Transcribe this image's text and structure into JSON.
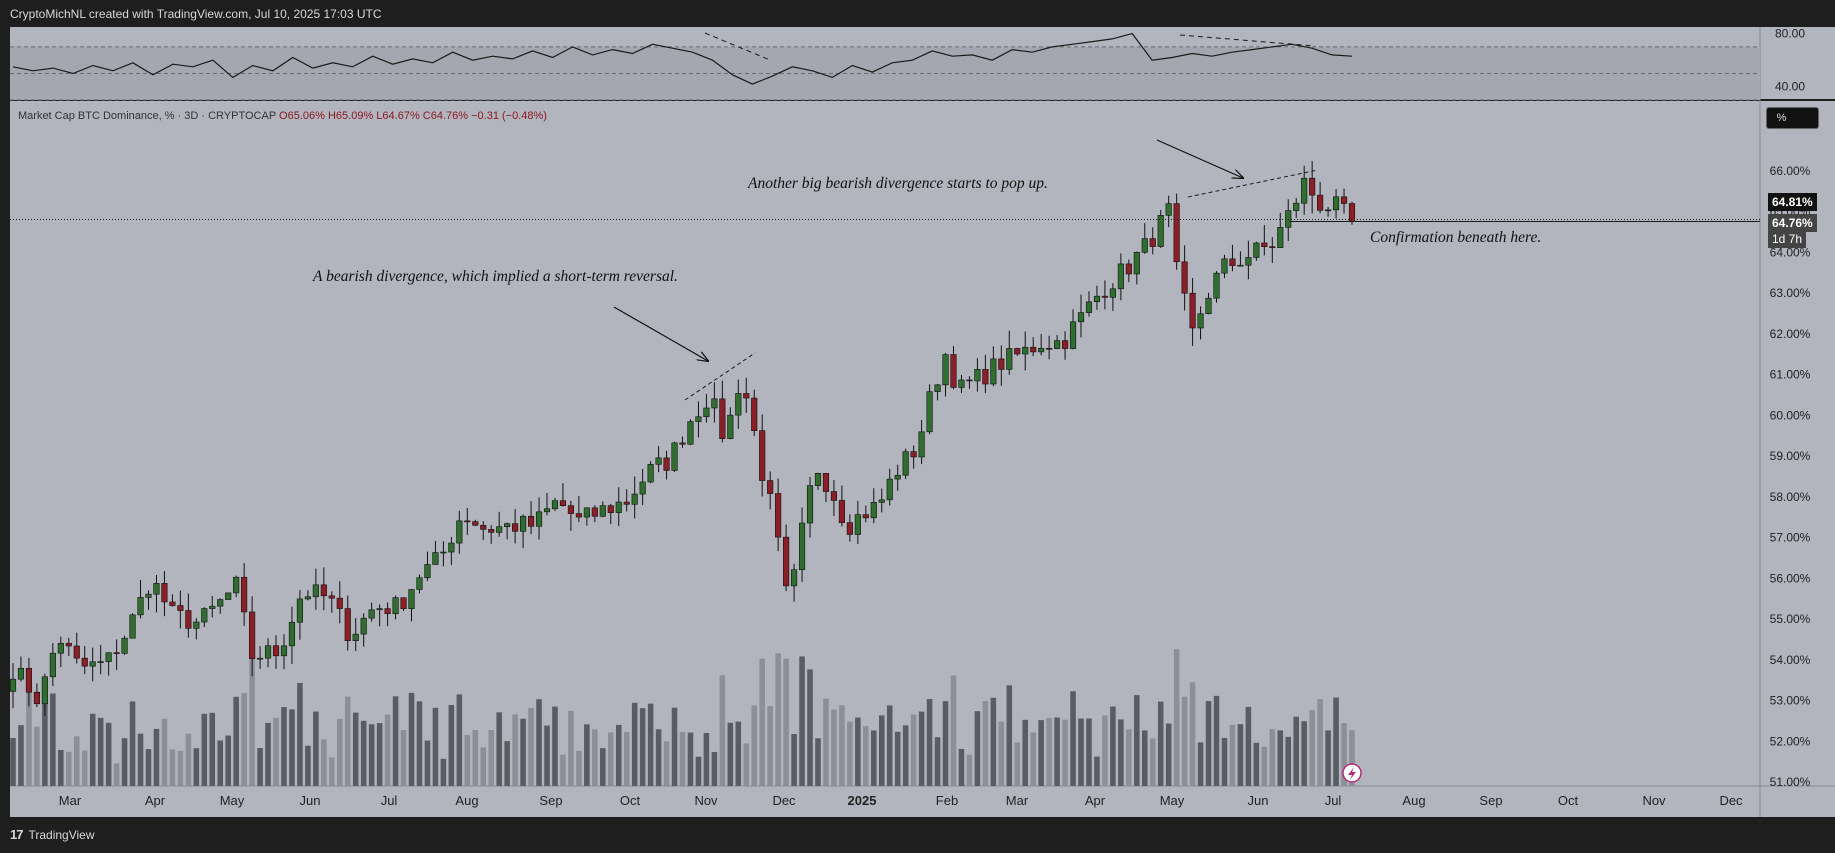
{
  "header": {
    "attribution": "CryptoMichNL created with TradingView.com, Jul 10, 2025 17:03 UTC"
  },
  "footer": {
    "brand": "TradingView",
    "logo": "17"
  },
  "legend": {
    "symbol": "Market Cap BTC Dominance, % · 3D · CRYPTOCAP",
    "open": "O65.06%",
    "high": "H65.09%",
    "low": "L64.67%",
    "close": "C64.76%",
    "change": "−0.31 (−0.48%)"
  },
  "annotations": {
    "first": "A bearish divergence, which implied a short-term reversal.",
    "second": "Another big bearish divergence starts to pop up.",
    "third": "Confirmation beneath here."
  },
  "price_tags": {
    "last": "64.81%",
    "close": "64.76%",
    "countdown": "1d 7h"
  },
  "scale_button": "%",
  "colors": {
    "bull": "#2f6e2f",
    "bear": "#8b1f28",
    "background": "#b2b5be",
    "volume_dark": "#5a5c63",
    "volume_light": "#8c8f98"
  },
  "chart_data": {
    "type": "candlestick",
    "title": "Market Cap BTC Dominance, %",
    "timeframe": "3D",
    "ylim": [
      51.0,
      66.5
    ],
    "y_ticks": [
      "51.00%",
      "52.00%",
      "53.00%",
      "54.00%",
      "55.00%",
      "56.00%",
      "57.00%",
      "58.00%",
      "59.00%",
      "60.00%",
      "61.00%",
      "62.00%",
      "63.00%",
      "64.00%",
      "65.00%",
      "66.00%"
    ],
    "x_ticks": [
      "Mar",
      "Apr",
      "May",
      "Jun",
      "Jul",
      "Aug",
      "Sep",
      "Oct",
      "Nov",
      "Dec",
      "2025",
      "Feb",
      "Mar",
      "Apr",
      "May",
      "Jun",
      "Jul",
      "Aug",
      "Sep",
      "Oct",
      "Nov",
      "Dec"
    ],
    "close_anchors": [
      {
        "date": "2024-02-20",
        "close": 53.8
      },
      {
        "date": "2024-03-01",
        "close": 53.0
      },
      {
        "date": "2024-03-08",
        "close": 54.6
      },
      {
        "date": "2024-03-16",
        "close": 53.8
      },
      {
        "date": "2024-03-26",
        "close": 53.9
      },
      {
        "date": "2024-04-03",
        "close": 54.7
      },
      {
        "date": "2024-04-12",
        "close": 56.0
      },
      {
        "date": "2024-04-20",
        "close": 55.1
      },
      {
        "date": "2024-04-30",
        "close": 54.9
      },
      {
        "date": "2024-05-08",
        "close": 55.4
      },
      {
        "date": "2024-05-14",
        "close": 55.8
      },
      {
        "date": "2024-05-20",
        "close": 54.1
      },
      {
        "date": "2024-05-30",
        "close": 54.2
      },
      {
        "date": "2024-06-08",
        "close": 55.7
      },
      {
        "date": "2024-06-18",
        "close": 55.5
      },
      {
        "date": "2024-06-26",
        "close": 54.6
      },
      {
        "date": "2024-07-05",
        "close": 55.3
      },
      {
        "date": "2024-07-14",
        "close": 55.3
      },
      {
        "date": "2024-07-22",
        "close": 56.1
      },
      {
        "date": "2024-07-30",
        "close": 56.5
      },
      {
        "date": "2024-08-07",
        "close": 57.6
      },
      {
        "date": "2024-08-16",
        "close": 57.2
      },
      {
        "date": "2024-08-26",
        "close": 57.3
      },
      {
        "date": "2024-09-03",
        "close": 57.3
      },
      {
        "date": "2024-09-12",
        "close": 57.9
      },
      {
        "date": "2024-09-20",
        "close": 57.4
      },
      {
        "date": "2024-09-30",
        "close": 57.7
      },
      {
        "date": "2024-10-08",
        "close": 57.9
      },
      {
        "date": "2024-10-16",
        "close": 58.6
      },
      {
        "date": "2024-10-24",
        "close": 58.9
      },
      {
        "date": "2024-11-01",
        "close": 59.9
      },
      {
        "date": "2024-11-08",
        "close": 60.5
      },
      {
        "date": "2024-11-14",
        "close": 59.4
      },
      {
        "date": "2024-11-20",
        "close": 61.0
      },
      {
        "date": "2024-11-24",
        "close": 59.9
      },
      {
        "date": "2024-11-28",
        "close": 58.6
      },
      {
        "date": "2024-12-02",
        "close": 57.6
      },
      {
        "date": "2024-12-08",
        "close": 55.2
      },
      {
        "date": "2024-12-12",
        "close": 56.8
      },
      {
        "date": "2024-12-18",
        "close": 58.8
      },
      {
        "date": "2024-12-24",
        "close": 58.2
      },
      {
        "date": "2024-12-30",
        "close": 57.3
      },
      {
        "date": "2025-01-05",
        "close": 57.6
      },
      {
        "date": "2025-01-11",
        "close": 57.8
      },
      {
        "date": "2025-01-17",
        "close": 58.6
      },
      {
        "date": "2025-01-25",
        "close": 59.2
      },
      {
        "date": "2025-01-31",
        "close": 60.6
      },
      {
        "date": "2025-02-05",
        "close": 61.5
      },
      {
        "date": "2025-02-10",
        "close": 60.6
      },
      {
        "date": "2025-02-17",
        "close": 60.9
      },
      {
        "date": "2025-02-26",
        "close": 61.3
      },
      {
        "date": "2025-03-05",
        "close": 61.5
      },
      {
        "date": "2025-03-13",
        "close": 61.8
      },
      {
        "date": "2025-03-21",
        "close": 61.8
      },
      {
        "date": "2025-03-29",
        "close": 62.5
      },
      {
        "date": "2025-04-05",
        "close": 63.1
      },
      {
        "date": "2025-04-14",
        "close": 63.6
      },
      {
        "date": "2025-04-22",
        "close": 64.2
      },
      {
        "date": "2025-04-30",
        "close": 65.0
      },
      {
        "date": "2025-05-03",
        "close": 63.5
      },
      {
        "date": "2025-05-09",
        "close": 62.0
      },
      {
        "date": "2025-05-14",
        "close": 62.9
      },
      {
        "date": "2025-05-20",
        "close": 63.6
      },
      {
        "date": "2025-05-29",
        "close": 63.9
      },
      {
        "date": "2025-06-08",
        "close": 64.2
      },
      {
        "date": "2025-06-14",
        "close": 64.9
      },
      {
        "date": "2025-06-20",
        "close": 65.7
      },
      {
        "date": "2025-06-26",
        "close": 65.2
      },
      {
        "date": "2025-07-02",
        "close": 65.1
      },
      {
        "date": "2025-07-08",
        "close": 64.76
      }
    ],
    "volume_relative": "bars shown as relative heights beneath price",
    "rsi_panel": {
      "ylim": [
        30,
        85
      ],
      "y_ticks": [
        "80.00",
        "40.00"
      ],
      "levels": [
        70,
        50,
        30
      ],
      "series": [
        55,
        52,
        54,
        50,
        56,
        52,
        58,
        49,
        57,
        55,
        60,
        47,
        56,
        52,
        62,
        54,
        58,
        55,
        63,
        57,
        61,
        58,
        66,
        60,
        63,
        61,
        67,
        62,
        70,
        64,
        68,
        65,
        72,
        69,
        66,
        60,
        49,
        42,
        48,
        55,
        52,
        47,
        56,
        51,
        58,
        60,
        67,
        63,
        64,
        60,
        68,
        66,
        70,
        72,
        74,
        76,
        80,
        60,
        62,
        65,
        63,
        66,
        68,
        70,
        72,
        69,
        64,
        63
      ]
    }
  }
}
